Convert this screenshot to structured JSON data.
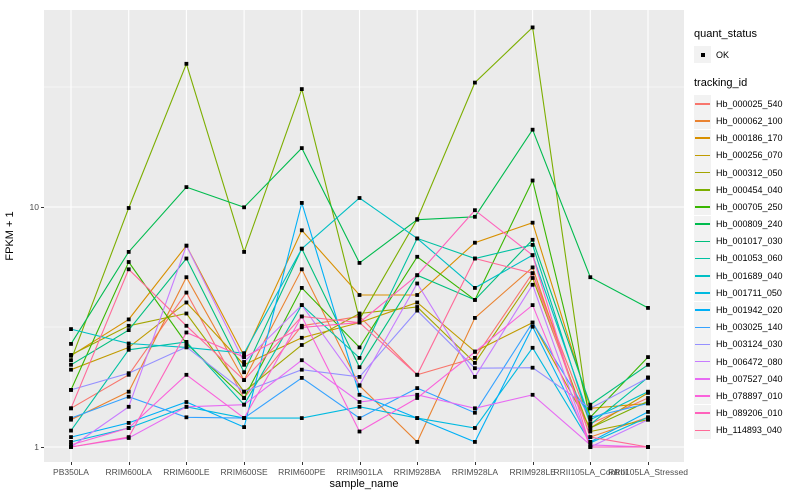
{
  "figure": {
    "background": "#FFFFFF",
    "panel_background": "#EBEBEB",
    "grid_color": "#FFFFFF",
    "tick_label_color": "#4D4D4D",
    "point_color": "#000000"
  },
  "yaxis": {
    "title": "FPKM + 1",
    "tick_labels": [
      "10",
      "1"
    ]
  },
  "xaxis": {
    "title": "sample_name"
  },
  "legend": {
    "quant_title": "quant_status",
    "quant_items": [
      {
        "label": "OK",
        "glyph": "black-point"
      }
    ],
    "tracking_title": "tracking_id"
  },
  "chart_data": {
    "type": "line",
    "title": "",
    "xlabel": "sample_name",
    "ylabel": "FPKM + 1",
    "yscale": "log10",
    "y_major_ticks": [
      1,
      10
    ],
    "y_minor_ticks": [
      3.1623,
      31.623
    ],
    "ylim": [
      0.87,
      66
    ],
    "grid": true,
    "legend_position": "right",
    "point_shape": "small-black-square",
    "categories": [
      "PB350LA",
      "RRIM600LA",
      "RRIM600LE",
      "RRIM600SE",
      "RRIM600PE",
      "RRIM901LA",
      "RRIM928BA",
      "RRIM928LA",
      "RRIM928LE",
      "RRII105LA_Control",
      "RRII105LA_Stressed"
    ],
    "series": [
      {
        "name": "Hb_000025_540",
        "color": "#F8766D",
        "values": [
          1.45,
          2.0,
          4.4,
          1.6,
          3.2,
          3.5,
          2.0,
          2.35,
          5.3,
          1.25,
          1.6
        ]
      },
      {
        "name": "Hb_000062_100",
        "color": "#EA8331",
        "values": [
          1.3,
          1.7,
          5.1,
          1.9,
          5.5,
          1.8,
          1.05,
          3.45,
          5.6,
          1.1,
          1.33
        ]
      },
      {
        "name": "Hb_000186_170",
        "color": "#D89000",
        "values": [
          2.4,
          3.4,
          6.9,
          2.4,
          8.0,
          4.3,
          4.3,
          7.1,
          8.6,
          1.45,
          1.52
        ]
      },
      {
        "name": "Hb_000256_070",
        "color": "#C09B00",
        "values": [
          2.1,
          2.6,
          4.0,
          2.2,
          2.85,
          3.3,
          4.0,
          2.5,
          3.3,
          1.2,
          1.68
        ]
      },
      {
        "name": "Hb_000312_050",
        "color": "#A3A500",
        "values": [
          2.42,
          3.2,
          3.6,
          1.7,
          2.66,
          3.6,
          3.83,
          2.24,
          5.06,
          1.16,
          1.3
        ]
      },
      {
        "name": "Hb_000454_040",
        "color": "#7CAE00",
        "values": [
          2.3,
          9.9,
          39.5,
          6.5,
          31.0,
          3.4,
          8.9,
          33.0,
          56.0,
          1.2,
          1.55
        ]
      },
      {
        "name": "Hb_000705_250",
        "color": "#39B600",
        "values": [
          1.73,
          5.9,
          2.7,
          1.6,
          4.6,
          2.6,
          6.2,
          4.1,
          12.9,
          1.33,
          2.37
        ]
      },
      {
        "name": "Hb_000809_240",
        "color": "#00BB4E",
        "values": [
          2.69,
          6.5,
          12.1,
          9.97,
          17.6,
          5.85,
          8.85,
          9.1,
          21.0,
          5.1,
          3.8
        ]
      },
      {
        "name": "Hb_001017_030",
        "color": "#00BF7D",
        "values": [
          2.2,
          3.07,
          6.1,
          2.05,
          6.7,
          2.15,
          5.2,
          4.1,
          7.3,
          1.5,
          2.2
        ]
      },
      {
        "name": "Hb_001053_060",
        "color": "#00C1A3",
        "values": [
          1.17,
          2.54,
          2.74,
          1.5,
          3.9,
          2.35,
          7.4,
          6.1,
          6.95,
          1.24,
          1.95
        ]
      },
      {
        "name": "Hb_001689_040",
        "color": "#00BFC4",
        "values": [
          3.1,
          2.7,
          2.6,
          2.46,
          6.7,
          10.9,
          7.4,
          4.6,
          6.3,
          1.3,
          1.7
        ]
      },
      {
        "name": "Hb_001711_050",
        "color": "#00BAE0",
        "values": [
          1.05,
          1.2,
          1.47,
          1.32,
          1.32,
          1.47,
          1.32,
          1.2,
          2.59,
          1.04,
          1.33
        ]
      },
      {
        "name": "Hb_001942_020",
        "color": "#00B0F6",
        "values": [
          1.1,
          1.26,
          1.54,
          1.21,
          10.4,
          1.65,
          1.32,
          1.05,
          3.17,
          1.05,
          1.4
        ]
      },
      {
        "name": "Hb_003025_140",
        "color": "#35A2FF",
        "values": [
          1.32,
          1.62,
          1.33,
          1.32,
          1.94,
          1.32,
          1.76,
          1.39,
          3.3,
          1.33,
          1.52
        ]
      },
      {
        "name": "Hb_003124_030",
        "color": "#9590FF",
        "values": [
          1.73,
          2.03,
          2.61,
          1.7,
          2.1,
          1.96,
          3.7,
          2.13,
          2.14,
          1.45,
          1.94
        ]
      },
      {
        "name": "Hb_006472_080",
        "color": "#C77CFF",
        "values": [
          1.0,
          1.47,
          6.9,
          2.26,
          3.9,
          1.81,
          4.8,
          1.96,
          4.74,
          1.0,
          1.3
        ]
      },
      {
        "name": "Hb_007527_040",
        "color": "#E76BF3",
        "values": [
          1.0,
          1.09,
          1.47,
          1.5,
          2.3,
          1.54,
          1.65,
          1.45,
          1.65,
          1.02,
          1.0
        ]
      },
      {
        "name": "Hb_078897_010",
        "color": "#FA62DB",
        "values": [
          1.02,
          1.2,
          2.0,
          1.32,
          3.5,
          1.16,
          1.6,
          2.49,
          3.9,
          1.0,
          1.0
        ]
      },
      {
        "name": "Hb_089206_010",
        "color": "#FF62BC",
        "values": [
          1.0,
          1.1,
          3.0,
          2.37,
          3.15,
          3.3,
          5.2,
          9.7,
          6.3,
          1.0,
          1.0
        ]
      },
      {
        "name": "Hb_114893_040",
        "color": "#FF6A98",
        "values": [
          1.45,
          5.5,
          3.2,
          1.9,
          3.5,
          3.3,
          2.0,
          6.1,
          5.3,
          1.1,
          1.0
        ]
      }
    ]
  }
}
